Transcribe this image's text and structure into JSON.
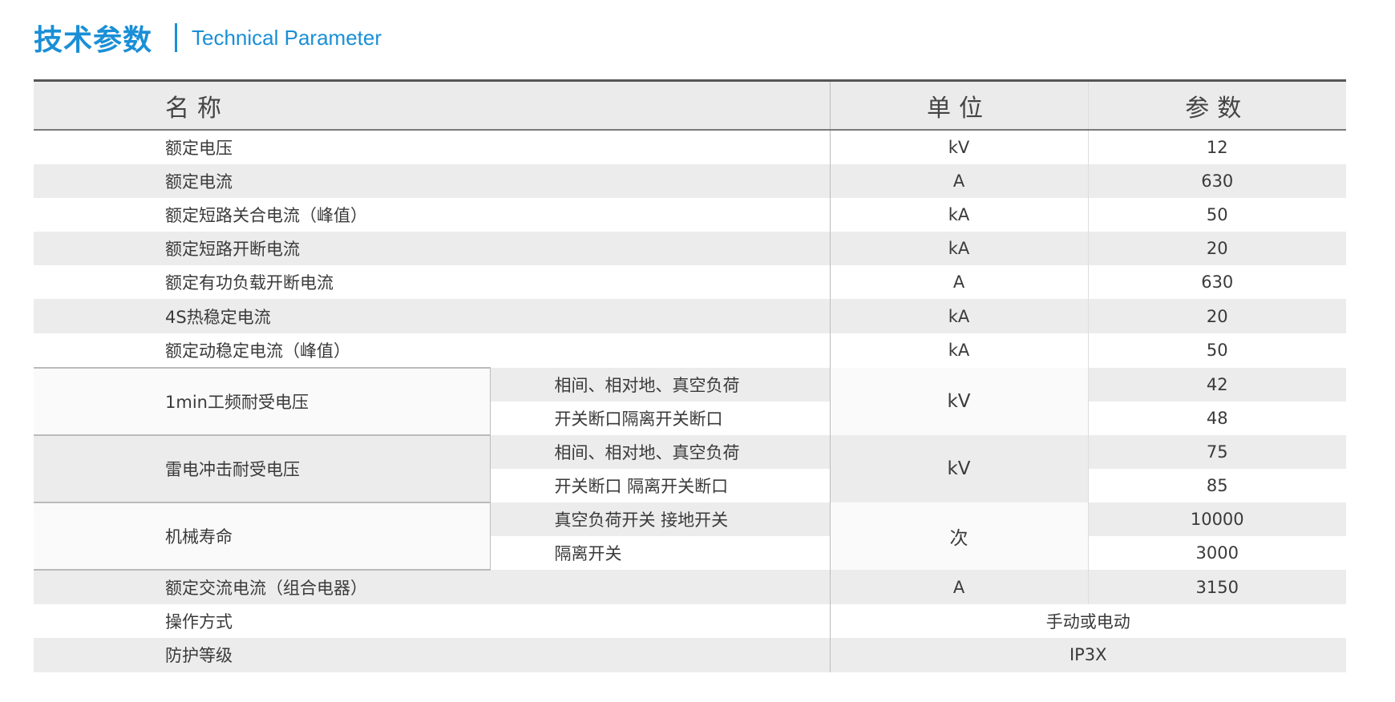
{
  "title": {
    "cn": "技术参数",
    "en": "Technical Parameter"
  },
  "colors": {
    "accent": "#1a8fd6",
    "stripe": "#ececec"
  },
  "table": {
    "headers": [
      "名称",
      "单位",
      "参数"
    ],
    "rows": [
      {
        "name": "额定电压",
        "unit": "kV",
        "value": "12"
      },
      {
        "name": "额定电流",
        "unit": "A",
        "value": "630"
      },
      {
        "name": "额定短路关合电流（峰值）",
        "unit": "kA",
        "value": "50"
      },
      {
        "name": "额定短路开断电流",
        "unit": "kA",
        "value": "20"
      },
      {
        "name": "额定有功负载开断电流",
        "unit": "A",
        "value": "630"
      },
      {
        "name": "4S热稳定电流",
        "unit": "kA",
        "value": "20"
      },
      {
        "name": "额定动稳定电流（峰值）",
        "unit": "kA",
        "value": "50"
      }
    ],
    "groups": [
      {
        "name": "1min工频耐受电压",
        "unit": "kV",
        "items": [
          {
            "sub": "相间、相对地、真空负荷",
            "value": "42"
          },
          {
            "sub": "开关断口隔离开关断口",
            "value": "48"
          }
        ]
      },
      {
        "name": "雷电冲击耐受电压",
        "unit": "kV",
        "items": [
          {
            "sub": "相间、相对地、真空负荷",
            "value": "75"
          },
          {
            "sub": "开关断口  隔离开关断口",
            "value": "85"
          }
        ]
      },
      {
        "name": "机械寿命",
        "unit": "次",
        "items": [
          {
            "sub": "真空负荷开关  接地开关",
            "value": "10000"
          },
          {
            "sub": "隔离开关",
            "value": "3000"
          }
        ]
      }
    ],
    "tail_rows": [
      {
        "name": "额定交流电流（组合电器）",
        "unit": "A",
        "value": "3150"
      }
    ],
    "wide_rows": [
      {
        "name": "操作方式",
        "value": "手动或电动"
      },
      {
        "name": "防护等级",
        "value": "IP3X"
      }
    ]
  }
}
